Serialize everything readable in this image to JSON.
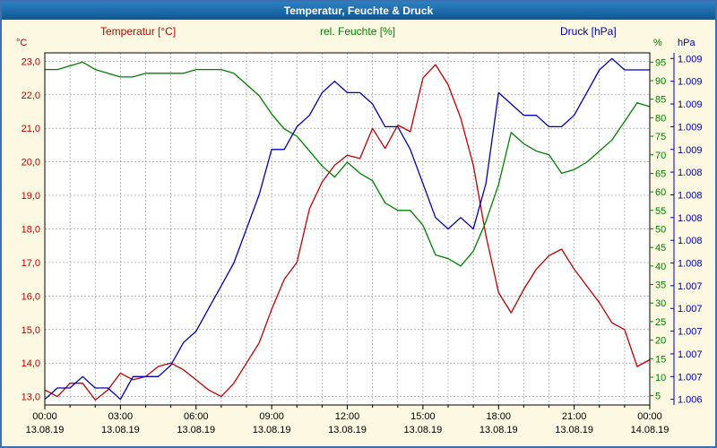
{
  "window": {
    "title": "Temperatur, Feuchte & Druck"
  },
  "legend": [
    {
      "label": "Temperatur  [°C]",
      "color": "#c00000"
    },
    {
      "label": "rel. Feuchte [%]",
      "color": "#008000"
    },
    {
      "label": "Druck [hPa]",
      "color": "#0000b0"
    }
  ],
  "colors": {
    "background": "#fdf8e1",
    "titlebar_top": "#2d7fc0",
    "titlebar_bottom": "#0f5795",
    "window_border": "#3f6fae",
    "grid": "#9e9e9e",
    "plot_border": "#000000",
    "axis_text": "#000000"
  },
  "chart_data": {
    "type": "line",
    "title": "Temperatur, Feuchte & Druck",
    "x_range_hours": [
      0,
      24
    ],
    "x_step_hours": 0.5,
    "grid": "dashed",
    "legend_position": "top",
    "axes": {
      "temperature": {
        "unit": "°C",
        "min": 12.75,
        "max": 23.25,
        "tick_values": [
          23,
          22,
          21,
          20,
          19,
          18,
          17,
          16,
          15,
          14,
          13
        ],
        "tick_labels": [
          "23,0",
          "22,0",
          "21,0",
          "20,0",
          "19,0",
          "18,0",
          "17,0",
          "16,0",
          "15,0",
          "14,0",
          "13,0"
        ]
      },
      "humidity": {
        "unit": "%",
        "min": 2.5,
        "max": 97.5,
        "tick_values": [
          95,
          90,
          85,
          80,
          75,
          70,
          65,
          60,
          55,
          50,
          45,
          40,
          35,
          30,
          25,
          20,
          15,
          10,
          5
        ],
        "tick_labels": [
          "95",
          "90",
          "85",
          "80",
          "75",
          "70",
          "65",
          "60",
          "55",
          "50",
          "45",
          "40",
          "35",
          "30",
          "25",
          "20",
          "15",
          "10",
          "5"
        ]
      },
      "pressure": {
        "unit": "hPa",
        "min": 1006.35,
        "max": 1009.45,
        "tick_values": [
          1009.4,
          1009.2,
          1009.0,
          1008.8,
          1008.6,
          1008.4,
          1008.2,
          1008.0,
          1007.8,
          1007.6,
          1007.4,
          1007.2,
          1007.0,
          1006.8,
          1006.6,
          1006.4
        ],
        "tick_labels": [
          "1.009",
          "1.009",
          "1.009",
          "1.009",
          "1.009",
          "1.008",
          "1.008",
          "1.008",
          "1.008",
          "1.008",
          "1.007",
          "1.007",
          "1.007",
          "1.007",
          "1.007",
          "1.006"
        ]
      },
      "x": {
        "tick_hours": [
          0,
          3,
          6,
          9,
          12,
          15,
          18,
          21,
          24
        ],
        "tick_labels": [
          "00:00",
          "03:00",
          "06:00",
          "09:00",
          "12:00",
          "15:00",
          "18:00",
          "21:00",
          "00:00"
        ],
        "date_labels": [
          "13.08.19",
          "13.08.19",
          "13.08.19",
          "13.08.19",
          "13.08.19",
          "13.08.19",
          "13.08.19",
          "13.08.19",
          "14.08.19"
        ],
        "grid_every_hours": 1
      }
    },
    "series": [
      {
        "name": "Temperatur",
        "unit": "°C",
        "axis": "temperature",
        "color": "#c00000",
        "values": [
          13.2,
          13.0,
          13.4,
          13.4,
          12.9,
          13.2,
          13.7,
          13.5,
          13.6,
          13.9,
          14.0,
          13.8,
          13.5,
          13.2,
          13.0,
          13.4,
          14.0,
          14.6,
          15.6,
          16.5,
          17.0,
          18.6,
          19.4,
          19.9,
          20.2,
          20.1,
          21.0,
          20.4,
          21.1,
          20.9,
          22.5,
          22.9,
          22.3,
          21.3,
          19.9,
          17.8,
          16.1,
          15.5,
          16.2,
          16.8,
          17.2,
          17.4,
          16.8,
          16.3,
          15.8,
          15.2,
          15.0,
          13.9,
          14.1
        ]
      },
      {
        "name": "rel. Feuchte",
        "unit": "%",
        "axis": "humidity",
        "color": "#008000",
        "values": [
          93,
          93,
          94,
          95,
          93,
          92,
          91,
          91,
          92,
          92,
          92,
          92,
          93,
          93,
          93,
          92,
          89,
          86,
          81,
          77,
          75,
          71,
          67,
          64,
          68,
          65,
          63,
          57,
          55,
          55,
          51,
          43,
          42,
          40,
          44,
          52,
          62,
          76,
          73,
          71,
          70,
          65,
          66,
          68,
          71,
          74,
          79,
          84,
          83
        ]
      },
      {
        "name": "Druck",
        "unit": "hPa",
        "axis": "pressure",
        "color": "#0000b0",
        "values": [
          1006.4,
          1006.5,
          1006.5,
          1006.6,
          1006.5,
          1006.5,
          1006.4,
          1006.6,
          1006.6,
          1006.6,
          1006.7,
          1006.9,
          1007.0,
          1007.2,
          1007.4,
          1007.6,
          1007.9,
          1008.2,
          1008.6,
          1008.6,
          1008.8,
          1008.9,
          1009.1,
          1009.2,
          1009.1,
          1009.1,
          1009.0,
          1008.8,
          1008.8,
          1008.6,
          1008.3,
          1008.0,
          1007.9,
          1008.0,
          1007.9,
          1008.3,
          1009.1,
          1009.0,
          1008.9,
          1008.9,
          1008.8,
          1008.8,
          1008.9,
          1009.1,
          1009.3,
          1009.4,
          1009.3,
          1009.3,
          1009.3
        ]
      }
    ]
  }
}
